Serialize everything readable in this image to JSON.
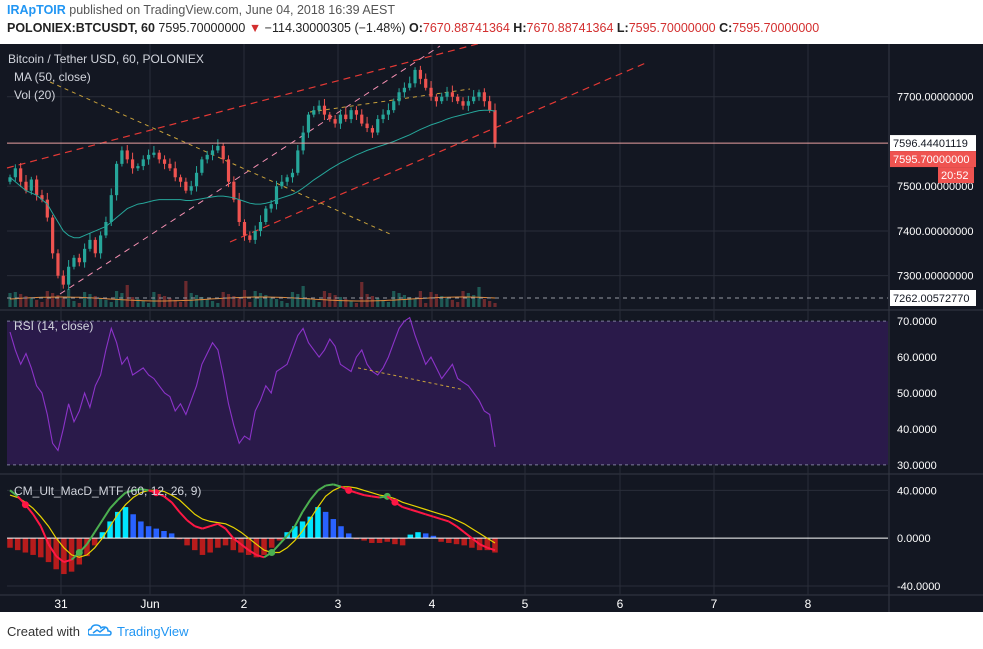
{
  "header": {
    "author": "IRApTOIR",
    "published_text": "published on TradingView.com, June 04, 2018 16:39 AEST",
    "symbol": "POLONIEX:BTCUSDT, 60",
    "last_price": "7595.70000000",
    "change": "−114.30000305 (−1.48%)",
    "open_label": "O:",
    "open": "7670.88741364",
    "high_label": "H:",
    "high": "7670.88741364",
    "low_label": "L:",
    "low": "7595.70000000",
    "close_label": "C:",
    "close": "7595.70000000"
  },
  "legend": {
    "title": "Bitcoin / Tether USD, 60, POLONIEX",
    "ma": "MA (50, close)",
    "vol": "Vol (20)",
    "rsi": "RSI (14, close)",
    "macd": "CM_Ult_MacD_MTF (60, 12, 26, 9)"
  },
  "price_axis": {
    "ticks": [
      "7700.00000000",
      "7500.00000000",
      "7400.00000000",
      "7300.00000000"
    ],
    "marker_line": "7596.44401119",
    "marker_last": "7595.70000000",
    "countdown": "20:52",
    "marker_volume": "7262.00572770"
  },
  "rsi_axis": {
    "ticks": [
      "70.0000",
      "60.0000",
      "50.0000",
      "40.0000",
      "30.0000"
    ]
  },
  "macd_axis": {
    "ticks": [
      "40.0000",
      "0.0000",
      "-40.0000"
    ]
  },
  "time_axis": {
    "labels": [
      "31",
      "Jun",
      "2",
      "3",
      "4",
      "5",
      "6",
      "7",
      "8"
    ]
  },
  "footer": {
    "created_with": "Created with",
    "brand": "TradingView"
  },
  "colors": {
    "background": "#131722",
    "grid": "#2a2e39",
    "axis_text": "#ffffff",
    "up_candle": "#26a69a",
    "down_candle": "#ef5350",
    "ma_line": "#26a69a",
    "rsi_line": "#8b33c8",
    "rsi_band": "#2a1a4a",
    "trend_red": "#e53935",
    "trend_pink": "#f48fb1",
    "trend_yellow": "#c8a13b",
    "macd_green": "#4caf50",
    "macd_yellow": "#e6d200",
    "macd_red_line": "#ff1744",
    "hist_cyan": "#00e5ff",
    "hist_blue": "#2962ff",
    "hist_red": "#b71c1c",
    "marker_bg": "#ef5350"
  },
  "chart_data": [
    {
      "type": "candlestick",
      "title": "Bitcoin / Tether USD, 60, POLONIEX",
      "x_labels": [
        "31",
        "Jun",
        "2",
        "3",
        "4",
        "5",
        "6",
        "7",
        "8"
      ],
      "ylim": [
        7230,
        7800
      ],
      "y_ticks": [
        7300,
        7400,
        7500,
        7700
      ],
      "closes": [
        7520,
        7540,
        7510,
        7490,
        7515,
        7480,
        7470,
        7430,
        7350,
        7300,
        7280,
        7320,
        7340,
        7330,
        7360,
        7380,
        7350,
        7390,
        7420,
        7480,
        7550,
        7580,
        7560,
        7540,
        7545,
        7560,
        7570,
        7575,
        7560,
        7550,
        7540,
        7520,
        7510,
        7490,
        7500,
        7530,
        7560,
        7570,
        7580,
        7590,
        7560,
        7510,
        7470,
        7420,
        7390,
        7380,
        7400,
        7420,
        7450,
        7460,
        7500,
        7510,
        7520,
        7530,
        7580,
        7620,
        7660,
        7670,
        7680,
        7660,
        7650,
        7640,
        7660,
        7650,
        7670,
        7660,
        7640,
        7630,
        7620,
        7650,
        7660,
        7670,
        7690,
        7710,
        7720,
        7730,
        7760,
        7740,
        7720,
        7700,
        7690,
        7700,
        7710,
        7700,
        7690,
        7680,
        7690,
        7700,
        7710,
        7690,
        7670,
        7595
      ],
      "ma50": [
        7520,
        7510,
        7500,
        7490,
        7485,
        7480,
        7470,
        7460,
        7440,
        7420,
        7400,
        7390,
        7385,
        7385,
        7390,
        7395,
        7400,
        7405,
        7410,
        7420,
        7430,
        7440,
        7450,
        7455,
        7460,
        7462,
        7465,
        7468,
        7470,
        7470,
        7470,
        7470,
        7470,
        7468,
        7468,
        7470,
        7472,
        7474,
        7476,
        7478,
        7478,
        7476,
        7474,
        7470,
        7466,
        7462,
        7460,
        7460,
        7462,
        7465,
        7470,
        7474,
        7478,
        7482,
        7488,
        7496,
        7505,
        7514,
        7522,
        7530,
        7538,
        7545,
        7552,
        7558,
        7564,
        7570,
        7575,
        7580,
        7584,
        7588,
        7592,
        7596,
        7600,
        7605,
        7610,
        7615,
        7621,
        7627,
        7632,
        7637,
        7641,
        7645,
        7650,
        7654,
        7657,
        7660,
        7663,
        7666,
        7669,
        7670,
        7670,
        7668
      ],
      "volume_marker": 7262.0057277
    },
    {
      "type": "line",
      "title": "RSI (14, close)",
      "ylim": [
        28,
        72
      ],
      "y_ticks": [
        30,
        40,
        50,
        60,
        70
      ],
      "values": [
        67,
        62,
        58,
        61,
        57,
        52,
        50,
        44,
        36,
        34,
        40,
        47,
        42,
        45,
        50,
        46,
        52,
        55,
        62,
        68,
        64,
        58,
        60,
        55,
        56,
        57,
        55,
        54,
        52,
        50,
        49,
        45,
        47,
        44,
        48,
        52,
        58,
        61,
        64,
        62,
        55,
        47,
        41,
        36,
        38,
        37,
        45,
        48,
        52,
        50,
        56,
        57,
        58,
        62,
        66,
        68,
        64,
        62,
        60,
        62,
        65,
        63,
        58,
        57,
        56,
        60,
        62,
        58,
        56,
        55,
        57,
        60,
        64,
        68,
        70,
        71,
        66,
        62,
        58,
        60,
        57,
        54,
        56,
        58,
        54,
        53,
        52,
        50,
        48,
        45,
        44,
        35
      ]
    },
    {
      "type": "bar+line",
      "title": "CM_Ult_MacD_MTF (60, 12, 26, 9)",
      "ylim": [
        -45,
        52
      ],
      "y_ticks": [
        -40,
        0,
        40
      ],
      "macd": [
        40,
        35,
        28,
        20,
        10,
        -5,
        -15,
        -20,
        -18,
        -12,
        -5,
        5,
        15,
        25,
        32,
        38,
        40,
        41,
        40,
        38,
        35,
        30,
        22,
        15,
        10,
        8,
        10,
        12,
        8,
        0,
        -5,
        -10,
        -14,
        -16,
        -12,
        -5,
        2,
        10,
        22,
        32,
        40,
        44,
        45,
        43,
        40,
        38,
        36,
        35,
        34,
        35,
        30,
        26,
        24,
        22,
        20,
        18,
        16,
        14,
        10,
        5,
        0,
        -5,
        -8,
        -10
      ],
      "signal": [
        36,
        34,
        30,
        25,
        18,
        10,
        0,
        -8,
        -14,
        -16,
        -14,
        -8,
        0,
        10,
        20,
        28,
        34,
        38,
        40,
        40,
        39,
        36,
        32,
        26,
        20,
        16,
        14,
        13,
        12,
        9,
        5,
        0,
        -5,
        -10,
        -12,
        -12,
        -8,
        -2,
        6,
        16,
        26,
        35,
        40,
        43,
        43,
        42,
        40,
        38,
        36,
        35,
        33,
        30,
        28,
        26,
        24,
        22,
        20,
        18,
        15,
        12,
        8,
        4,
        0,
        -4
      ],
      "histogram": [
        -8,
        -10,
        -12,
        -14,
        -16,
        -20,
        -26,
        -30,
        -28,
        -22,
        -15,
        -6,
        5,
        14,
        22,
        26,
        20,
        14,
        10,
        8,
        6,
        4,
        0,
        -6,
        -10,
        -14,
        -12,
        -8,
        -6,
        -10,
        -12,
        -14,
        -16,
        -14,
        -8,
        -2,
        5,
        10,
        14,
        18,
        26,
        22,
        16,
        10,
        4,
        0,
        -2,
        -4,
        -4,
        -3,
        -5,
        -6,
        3,
        5,
        4,
        2,
        -3,
        -4,
        -5,
        -6,
        -8,
        -10,
        -10,
        -12
      ]
    }
  ]
}
